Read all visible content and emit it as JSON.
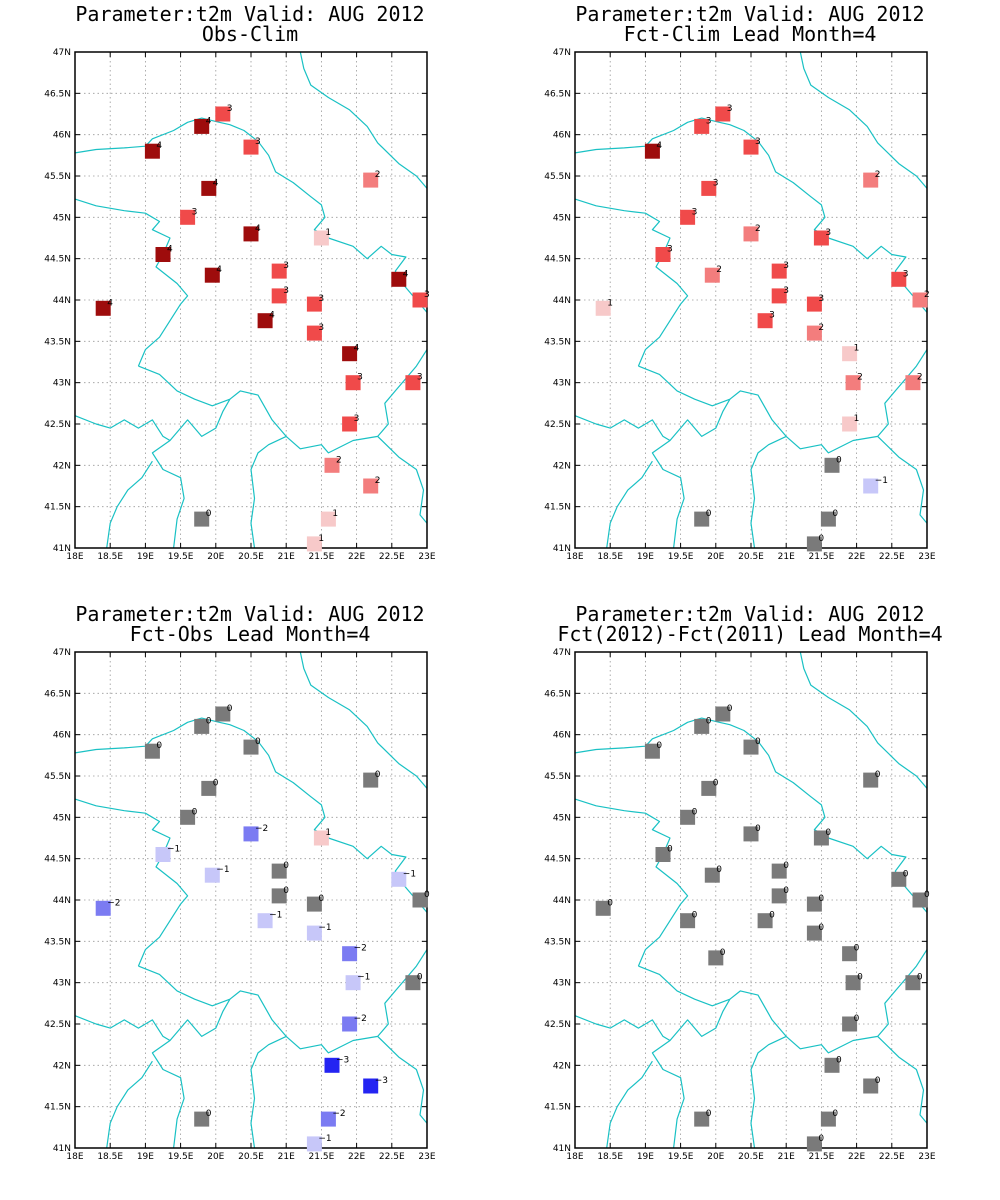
{
  "figure": {
    "colors": {
      "-3": "#2424f2",
      "-2": "#7b7bf2",
      "-1": "#c7c7f9",
      "0": "#7a7a7a",
      "1": "#f7c9c9",
      "2": "#f37d7d",
      "3": "#f04a4a",
      "5": "#f02020",
      "4": "#9e0c0c",
      "border": "#19c1c4"
    },
    "panels": [
      {
        "title_line1": "Parameter:t2m Valid: AUG 2012",
        "title_line2": "Obs-Clim"
      },
      {
        "title_line1": "Parameter:t2m Valid: AUG 2012",
        "title_line2": "Fct-Clim Lead Month=4"
      },
      {
        "title_line1": "Parameter:t2m Valid: AUG 2012",
        "title_line2": "Fct-Obs Lead Month=4"
      },
      {
        "title_line1": "Parameter:t2m Valid: AUG 2012",
        "title_line2": "Fct(2012)-Fct(2011) Lead Month=4"
      }
    ]
  },
  "chart_data": [
    {
      "type": "map-scatter",
      "title": "Parameter:t2m Valid: AUG 2012",
      "subtitle": "Obs-Clim",
      "xlim": [
        18,
        23
      ],
      "ylim": [
        41,
        47
      ],
      "x_ticks": [
        "18E",
        "18.5E",
        "19E",
        "19.5E",
        "20E",
        "20.5E",
        "21E",
        "21.5E",
        "22E",
        "22.5E",
        "23E"
      ],
      "y_ticks": [
        "41N",
        "41.5N",
        "42N",
        "42.5N",
        "43N",
        "43.5N",
        "44N",
        "44.5N",
        "45N",
        "45.5N",
        "46N",
        "46.5N",
        "47N"
      ],
      "stations": [
        {
          "lon": 20.1,
          "lat": 46.25,
          "value": 3
        },
        {
          "lon": 19.8,
          "lat": 46.1,
          "value": 4
        },
        {
          "lon": 19.1,
          "lat": 45.8,
          "value": 4
        },
        {
          "lon": 20.5,
          "lat": 45.85,
          "value": 3
        },
        {
          "lon": 22.2,
          "lat": 45.45,
          "value": 2
        },
        {
          "lon": 19.9,
          "lat": 45.35,
          "value": 4
        },
        {
          "lon": 19.6,
          "lat": 45.0,
          "value": 3
        },
        {
          "lon": 20.5,
          "lat": 44.8,
          "value": 4
        },
        {
          "lon": 21.5,
          "lat": 44.75,
          "value": 1
        },
        {
          "lon": 19.25,
          "lat": 44.55,
          "value": 4
        },
        {
          "lon": 20.9,
          "lat": 44.35,
          "value": 3
        },
        {
          "lon": 19.95,
          "lat": 44.3,
          "value": 4
        },
        {
          "lon": 22.6,
          "lat": 44.25,
          "value": 4
        },
        {
          "lon": 20.9,
          "lat": 44.05,
          "value": 3
        },
        {
          "lon": 21.4,
          "lat": 43.95,
          "value": 3
        },
        {
          "lon": 22.9,
          "lat": 44.0,
          "value": 3
        },
        {
          "lon": 18.4,
          "lat": 43.9,
          "value": 4
        },
        {
          "lon": 20.7,
          "lat": 43.75,
          "value": 4
        },
        {
          "lon": 21.4,
          "lat": 43.6,
          "value": 3
        },
        {
          "lon": 21.9,
          "lat": 43.35,
          "value": 4
        },
        {
          "lon": 21.95,
          "lat": 43.0,
          "value": 3
        },
        {
          "lon": 22.8,
          "lat": 43.0,
          "value": 3
        },
        {
          "lon": 21.9,
          "lat": 42.5,
          "value": 3
        },
        {
          "lon": 21.65,
          "lat": 42.0,
          "value": 2
        },
        {
          "lon": 22.2,
          "lat": 41.75,
          "value": 2
        },
        {
          "lon": 19.8,
          "lat": 41.35,
          "value": 0
        },
        {
          "lon": 21.6,
          "lat": 41.35,
          "value": 1
        },
        {
          "lon": 21.4,
          "lat": 41.05,
          "value": 1
        }
      ]
    },
    {
      "type": "map-scatter",
      "title": "Parameter:t2m Valid: AUG 2012",
      "subtitle": "Fct-Clim Lead Month=4",
      "xlim": [
        18,
        23
      ],
      "ylim": [
        41,
        47
      ],
      "x_ticks": [
        "18E",
        "18.5E",
        "19E",
        "19.5E",
        "20E",
        "20.5E",
        "21E",
        "21.5E",
        "22E",
        "22.5E",
        "23E"
      ],
      "y_ticks": [
        "41N",
        "41.5N",
        "42N",
        "42.5N",
        "43N",
        "43.5N",
        "44N",
        "44.5N",
        "45N",
        "45.5N",
        "46N",
        "46.5N",
        "47N"
      ],
      "stations": [
        {
          "lon": 20.1,
          "lat": 46.25,
          "value": 3
        },
        {
          "lon": 19.8,
          "lat": 46.1,
          "value": 3
        },
        {
          "lon": 19.1,
          "lat": 45.8,
          "value": 4
        },
        {
          "lon": 20.5,
          "lat": 45.85,
          "value": 3
        },
        {
          "lon": 22.2,
          "lat": 45.45,
          "value": 2
        },
        {
          "lon": 19.9,
          "lat": 45.35,
          "value": 3
        },
        {
          "lon": 19.6,
          "lat": 45.0,
          "value": 3
        },
        {
          "lon": 20.5,
          "lat": 44.8,
          "value": 2
        },
        {
          "lon": 21.5,
          "lat": 44.75,
          "value": 3
        },
        {
          "lon": 19.25,
          "lat": 44.55,
          "value": 3
        },
        {
          "lon": 20.9,
          "lat": 44.35,
          "value": 3
        },
        {
          "lon": 19.95,
          "lat": 44.3,
          "value": 2
        },
        {
          "lon": 22.6,
          "lat": 44.25,
          "value": 3
        },
        {
          "lon": 20.9,
          "lat": 44.05,
          "value": 3
        },
        {
          "lon": 21.4,
          "lat": 43.95,
          "value": 3
        },
        {
          "lon": 22.9,
          "lat": 44.0,
          "value": 2
        },
        {
          "lon": 18.4,
          "lat": 43.9,
          "value": 1
        },
        {
          "lon": 20.7,
          "lat": 43.75,
          "value": 3
        },
        {
          "lon": 21.4,
          "lat": 43.6,
          "value": 2
        },
        {
          "lon": 21.9,
          "lat": 43.35,
          "value": 1
        },
        {
          "lon": 21.95,
          "lat": 43.0,
          "value": 2
        },
        {
          "lon": 22.8,
          "lat": 43.0,
          "value": 2
        },
        {
          "lon": 21.9,
          "lat": 42.5,
          "value": 1
        },
        {
          "lon": 21.65,
          "lat": 42.0,
          "value": 0
        },
        {
          "lon": 22.2,
          "lat": 41.75,
          "value": -1
        },
        {
          "lon": 19.8,
          "lat": 41.35,
          "value": 0
        },
        {
          "lon": 21.6,
          "lat": 41.35,
          "value": 0
        },
        {
          "lon": 21.4,
          "lat": 41.05,
          "value": 0
        }
      ]
    },
    {
      "type": "map-scatter",
      "title": "Parameter:t2m Valid: AUG 2012",
      "subtitle": "Fct-Obs Lead Month=4",
      "xlim": [
        18,
        23
      ],
      "ylim": [
        41,
        47
      ],
      "x_ticks": [
        "18E",
        "18.5E",
        "19E",
        "19.5E",
        "20E",
        "20.5E",
        "21E",
        "21.5E",
        "22E",
        "22.5E",
        "23E"
      ],
      "y_ticks": [
        "41N",
        "41.5N",
        "42N",
        "42.5N",
        "43N",
        "43.5N",
        "44N",
        "44.5N",
        "45N",
        "45.5N",
        "46N",
        "46.5N",
        "47N"
      ],
      "stations": [
        {
          "lon": 20.1,
          "lat": 46.25,
          "value": 0
        },
        {
          "lon": 19.8,
          "lat": 46.1,
          "value": 0
        },
        {
          "lon": 19.1,
          "lat": 45.8,
          "value": 0
        },
        {
          "lon": 20.5,
          "lat": 45.85,
          "value": 0
        },
        {
          "lon": 22.2,
          "lat": 45.45,
          "value": 0
        },
        {
          "lon": 19.9,
          "lat": 45.35,
          "value": 0
        },
        {
          "lon": 19.6,
          "lat": 45.0,
          "value": 0
        },
        {
          "lon": 20.5,
          "lat": 44.8,
          "value": -2
        },
        {
          "lon": 21.5,
          "lat": 44.75,
          "value": 1
        },
        {
          "lon": 19.25,
          "lat": 44.55,
          "value": -1
        },
        {
          "lon": 20.9,
          "lat": 44.35,
          "value": 0
        },
        {
          "lon": 19.95,
          "lat": 44.3,
          "value": -1
        },
        {
          "lon": 22.6,
          "lat": 44.25,
          "value": -1
        },
        {
          "lon": 20.9,
          "lat": 44.05,
          "value": 0
        },
        {
          "lon": 21.4,
          "lat": 43.95,
          "value": 0
        },
        {
          "lon": 22.9,
          "lat": 44.0,
          "value": 0
        },
        {
          "lon": 18.4,
          "lat": 43.9,
          "value": -2
        },
        {
          "lon": 20.7,
          "lat": 43.75,
          "value": -1
        },
        {
          "lon": 21.4,
          "lat": 43.6,
          "value": -1
        },
        {
          "lon": 21.9,
          "lat": 43.35,
          "value": -2
        },
        {
          "lon": 21.95,
          "lat": 43.0,
          "value": -1
        },
        {
          "lon": 22.8,
          "lat": 43.0,
          "value": 0
        },
        {
          "lon": 21.9,
          "lat": 42.5,
          "value": -2
        },
        {
          "lon": 21.65,
          "lat": 42.0,
          "value": -3
        },
        {
          "lon": 22.2,
          "lat": 41.75,
          "value": -3
        },
        {
          "lon": 19.8,
          "lat": 41.35,
          "value": 0
        },
        {
          "lon": 21.6,
          "lat": 41.35,
          "value": -2
        },
        {
          "lon": 21.4,
          "lat": 41.05,
          "value": -1
        }
      ]
    },
    {
      "type": "map-scatter",
      "title": "Parameter:t2m Valid: AUG 2012",
      "subtitle": "Fct(2012)-Fct(2011) Lead Month=4",
      "xlim": [
        18,
        23
      ],
      "ylim": [
        41,
        47
      ],
      "x_ticks": [
        "18E",
        "18.5E",
        "19E",
        "19.5E",
        "20E",
        "20.5E",
        "21E",
        "21.5E",
        "22E",
        "22.5E",
        "23E"
      ],
      "y_ticks": [
        "41N",
        "41.5N",
        "42N",
        "42.5N",
        "43N",
        "43.5N",
        "44N",
        "44.5N",
        "45N",
        "45.5N",
        "46N",
        "46.5N",
        "47N"
      ],
      "stations": [
        {
          "lon": 20.1,
          "lat": 46.25,
          "value": 0
        },
        {
          "lon": 19.8,
          "lat": 46.1,
          "value": 0
        },
        {
          "lon": 19.1,
          "lat": 45.8,
          "value": 0
        },
        {
          "lon": 20.5,
          "lat": 45.85,
          "value": 0
        },
        {
          "lon": 22.2,
          "lat": 45.45,
          "value": 0
        },
        {
          "lon": 19.9,
          "lat": 45.35,
          "value": 0
        },
        {
          "lon": 19.6,
          "lat": 45.0,
          "value": 0
        },
        {
          "lon": 20.5,
          "lat": 44.8,
          "value": 0
        },
        {
          "lon": 21.5,
          "lat": 44.75,
          "value": 0
        },
        {
          "lon": 19.25,
          "lat": 44.55,
          "value": 0
        },
        {
          "lon": 20.9,
          "lat": 44.35,
          "value": 0
        },
        {
          "lon": 19.95,
          "lat": 44.3,
          "value": 0
        },
        {
          "lon": 22.6,
          "lat": 44.25,
          "value": 0
        },
        {
          "lon": 20.9,
          "lat": 44.05,
          "value": 0
        },
        {
          "lon": 21.4,
          "lat": 43.95,
          "value": 0
        },
        {
          "lon": 22.9,
          "lat": 44.0,
          "value": 0
        },
        {
          "lon": 18.4,
          "lat": 43.9,
          "value": 0
        },
        {
          "lon": 19.6,
          "lat": 43.75,
          "value": 0
        },
        {
          "lon": 20.7,
          "lat": 43.75,
          "value": 0
        },
        {
          "lon": 21.4,
          "lat": 43.6,
          "value": 0
        },
        {
          "lon": 21.9,
          "lat": 43.35,
          "value": 0
        },
        {
          "lon": 20.0,
          "lat": 43.3,
          "value": 0
        },
        {
          "lon": 21.95,
          "lat": 43.0,
          "value": 0
        },
        {
          "lon": 22.8,
          "lat": 43.0,
          "value": 0
        },
        {
          "lon": 21.9,
          "lat": 42.5,
          "value": 0
        },
        {
          "lon": 21.65,
          "lat": 42.0,
          "value": 0
        },
        {
          "lon": 22.2,
          "lat": 41.75,
          "value": 0
        },
        {
          "lon": 19.8,
          "lat": 41.35,
          "value": 0
        },
        {
          "lon": 21.6,
          "lat": 41.35,
          "value": 0
        },
        {
          "lon": 21.4,
          "lat": 41.05,
          "value": 0
        }
      ]
    }
  ]
}
